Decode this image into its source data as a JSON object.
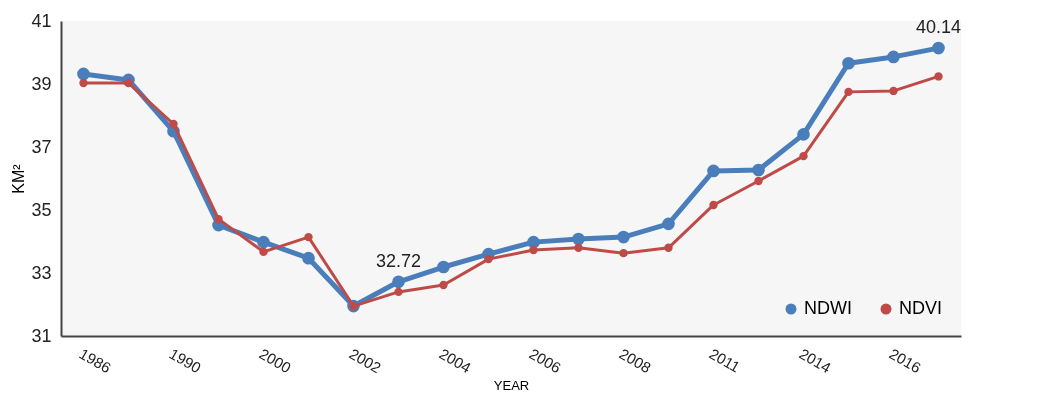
{
  "chart_data": {
    "type": "line",
    "xlabel": "YEAR",
    "ylabel": "KM²",
    "categories": [
      "1986",
      null,
      "1990",
      null,
      "2000",
      null,
      "2002",
      null,
      "2004",
      null,
      "2006",
      null,
      "2008",
      null,
      "2011",
      null,
      "2014",
      null,
      "2016",
      null
    ],
    "series": [
      {
        "name": "NDWI",
        "color": "#4a7ebb",
        "values": [
          39.32,
          39.13,
          37.5,
          34.52,
          33.98,
          33.47,
          31.95,
          32.72,
          33.19,
          33.6,
          33.98,
          34.08,
          34.14,
          34.56,
          36.24,
          36.27,
          37.4,
          39.66,
          39.86,
          40.14
        ],
        "value_labels": [
          null,
          null,
          null,
          null,
          null,
          null,
          null,
          "32.72",
          null,
          null,
          null,
          null,
          null,
          null,
          null,
          null,
          null,
          null,
          null,
          "40.14"
        ]
      },
      {
        "name": "NDVI",
        "color": "#be4b48",
        "values": [
          39.03,
          39.03,
          37.73,
          34.71,
          33.67,
          34.14,
          31.95,
          32.4,
          32.62,
          33.44,
          33.73,
          33.8,
          33.63,
          33.8,
          35.16,
          35.92,
          36.71,
          38.75,
          38.78,
          39.24
        ]
      }
    ],
    "ylim": [
      31,
      41
    ],
    "yticks": [
      31,
      33,
      35,
      37,
      39,
      41
    ],
    "legend": "bottom right",
    "marker": "circle"
  }
}
